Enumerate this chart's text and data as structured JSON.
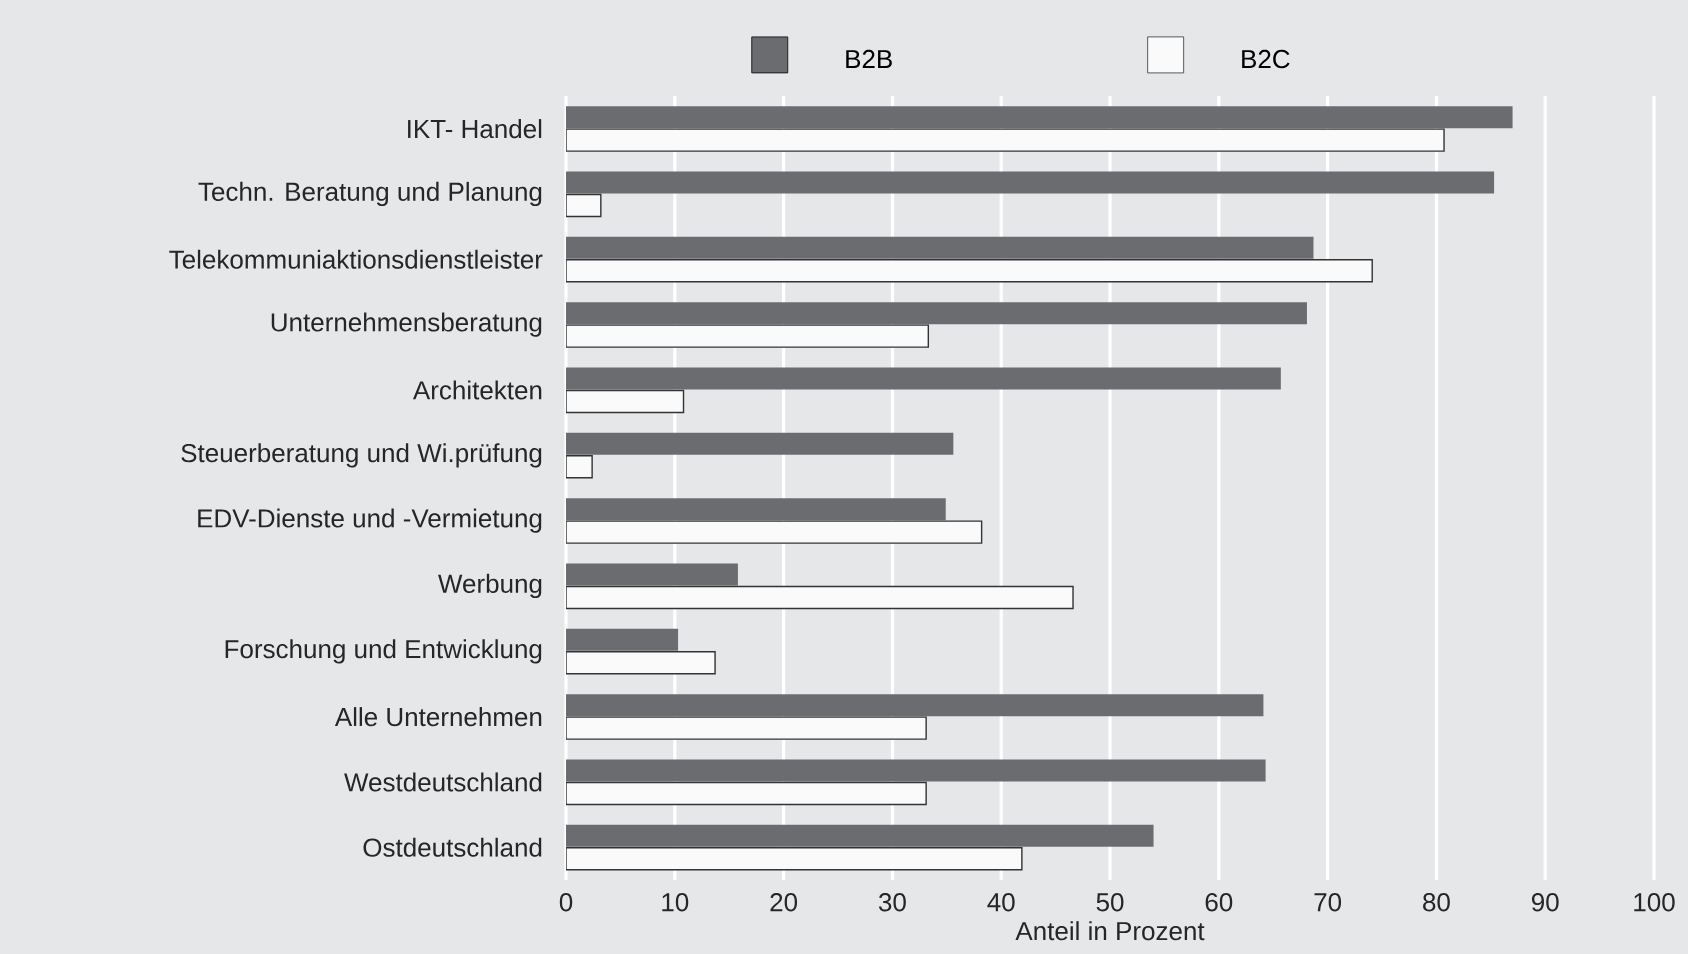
{
  "chart_data": {
    "type": "bar",
    "orientation": "horizontal",
    "xlabel": "Anteil in Prozent",
    "categories": [
      "IKT- Handel",
      "Techn. Beratung und Planung",
      "Telekommuniaktionsdienstleister",
      "Unternehmensberatung",
      "Architekten",
      "Steuerberatung und Wi.prüfung",
      "EDV-Dienste und -Vermietung",
      "Werbung",
      "Forschung und Entwicklung",
      "Alle Unternehmen",
      "Westdeutschland",
      "Ostdeutschland"
    ],
    "series": [
      {
        "name": "B2B",
        "color": "#6b6c70",
        "values": [
          87.0,
          85.3,
          68.7,
          68.1,
          65.7,
          35.6,
          34.9,
          15.8,
          10.3,
          64.1,
          64.3,
          54.0
        ]
      },
      {
        "name": "B2C",
        "color": "#fafafa",
        "values": [
          80.7,
          3.2,
          74.1,
          33.3,
          10.8,
          2.4,
          38.2,
          46.6,
          13.7,
          33.1,
          33.1,
          41.9
        ]
      }
    ],
    "xlim": [
      0,
      100
    ],
    "xticks": [
      0,
      10,
      20,
      30,
      40,
      50,
      60,
      70,
      80,
      90,
      100
    ],
    "grid": "x",
    "legend": "top"
  }
}
